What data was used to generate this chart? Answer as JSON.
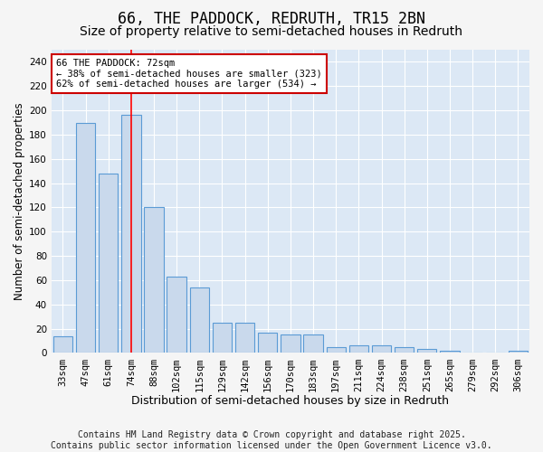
{
  "title": "66, THE PADDOCK, REDRUTH, TR15 2BN",
  "subtitle": "Size of property relative to semi-detached houses in Redruth",
  "xlabel": "Distribution of semi-detached houses by size in Redruth",
  "ylabel": "Number of semi-detached properties",
  "categories": [
    "33sqm",
    "47sqm",
    "61sqm",
    "74sqm",
    "88sqm",
    "102sqm",
    "115sqm",
    "129sqm",
    "142sqm",
    "156sqm",
    "170sqm",
    "183sqm",
    "197sqm",
    "211sqm",
    "224sqm",
    "238sqm",
    "251sqm",
    "265sqm",
    "279sqm",
    "292sqm",
    "306sqm"
  ],
  "values": [
    14,
    190,
    148,
    196,
    120,
    63,
    54,
    25,
    25,
    17,
    15,
    15,
    5,
    6,
    6,
    5,
    3,
    2,
    0,
    0,
    2
  ],
  "bar_color": "#c9d9ec",
  "bar_edge_color": "#5b9bd5",
  "red_line_x": 3.0,
  "annotation_text": "66 THE PADDOCK: 72sqm\n← 38% of semi-detached houses are smaller (323)\n62% of semi-detached houses are larger (534) →",
  "annotation_box_color": "#ffffff",
  "annotation_box_edge": "#cc0000",
  "footer": "Contains HM Land Registry data © Crown copyright and database right 2025.\nContains public sector information licensed under the Open Government Licence v3.0.",
  "ylim": [
    0,
    250
  ],
  "yticks": [
    0,
    20,
    40,
    60,
    80,
    100,
    120,
    140,
    160,
    180,
    200,
    220,
    240
  ],
  "background_color": "#dce8f5",
  "plot_bg_color": "#dce8f5",
  "fig_bg_color": "#f5f5f5",
  "grid_color": "#ffffff",
  "title_fontsize": 12,
  "subtitle_fontsize": 10,
  "xlabel_fontsize": 9,
  "ylabel_fontsize": 8.5,
  "tick_fontsize": 7.5,
  "footer_fontsize": 7,
  "annot_fontsize": 7.5
}
